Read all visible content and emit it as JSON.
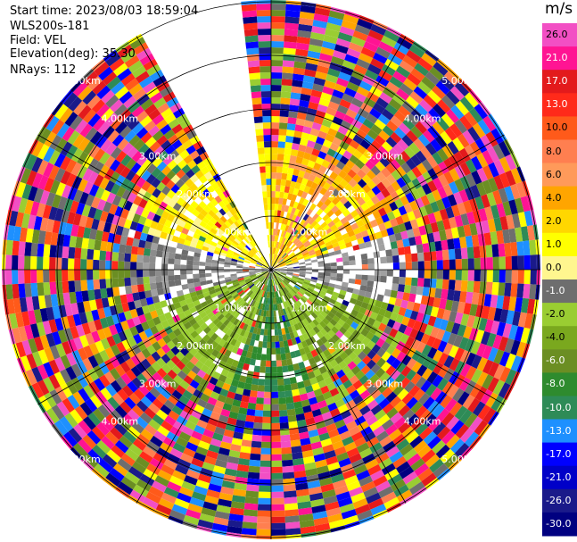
{
  "header": {
    "start_time": "Start time: 2023/08/03 18:59:04",
    "instrument": "WLS200s-181",
    "field": "Field: VEL",
    "elevation": "Elevation(deg): 35.30",
    "nrays": "NRays: 112"
  },
  "colorbar": {
    "unit": "m/s",
    "ticks": [
      "26.0",
      "21.0",
      "17.0",
      "13.0",
      "10.0",
      "8.0",
      "6.0",
      "4.0",
      "2.0",
      "1.0",
      "0.0",
      "-1.0",
      "-2.0",
      "-4.0",
      "-6.0",
      "-8.0",
      "-10.0",
      "-13.0",
      "-17.0",
      "-21.0",
      "-26.0",
      "-30.0"
    ],
    "colors": [
      "#f24fc4",
      "#ff1493",
      "#e31a1c",
      "#ff2a1a",
      "#ff5a1a",
      "#ff7f50",
      "#ff9a5a",
      "#ffa500",
      "#ffd700",
      "#ffff00",
      "#fff68f",
      "#6e6e6e",
      "#9acd32",
      "#7aa81e",
      "#6b8e23",
      "#2e8b2e",
      "#2e8b57",
      "#1e90ff",
      "#0000ff",
      "#0000c8",
      "#1a1a8a",
      "#000080"
    ]
  },
  "chart_data": {
    "type": "ppi_velocity",
    "field": "VEL",
    "units": "m/s",
    "ray_count": 112,
    "range_ring_labels": [
      "1.00km",
      "2.00km",
      "3.00km",
      "4.00km",
      "5.00km"
    ],
    "vmin": -30.0,
    "vmax": 26.0,
    "missing_sector_deg": [
      -30,
      -5
    ],
    "near_field": {
      "north_east": "yellow-orange (2 to 6 m/s)",
      "north_west": "yellow (2 to 4 m/s)",
      "south": "green (-2 to -8 m/s)",
      "east_west_axis": "gray (~0 m/s)"
    },
    "far_field": "random multicolor noise"
  }
}
